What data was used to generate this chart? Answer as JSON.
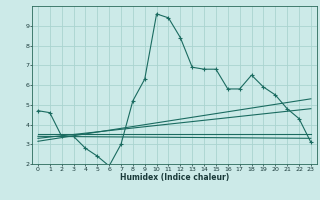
{
  "xlabel": "Humidex (Indice chaleur)",
  "bg_color": "#cceae8",
  "grid_color": "#aad4d0",
  "line_color": "#1a6b60",
  "xlim": [
    -0.5,
    23.5
  ],
  "ylim": [
    2,
    10
  ],
  "xticks": [
    0,
    1,
    2,
    3,
    4,
    5,
    6,
    7,
    8,
    9,
    10,
    11,
    12,
    13,
    14,
    15,
    16,
    17,
    18,
    19,
    20,
    21,
    22,
    23
  ],
  "yticks": [
    2,
    3,
    4,
    5,
    6,
    7,
    8,
    9
  ],
  "main_line_x": [
    0,
    1,
    2,
    3,
    4,
    5,
    6,
    7,
    8,
    9,
    10,
    11,
    12,
    13,
    14,
    15,
    16,
    17,
    18,
    19,
    20,
    21,
    22,
    23
  ],
  "main_line_y": [
    4.7,
    4.6,
    3.4,
    3.4,
    2.8,
    2.4,
    1.9,
    3.0,
    5.2,
    6.3,
    9.6,
    9.4,
    8.4,
    6.9,
    6.8,
    6.8,
    5.8,
    5.8,
    6.5,
    5.9,
    5.5,
    4.8,
    4.3,
    3.1
  ],
  "line2_x": [
    0,
    23
  ],
  "line2_y": [
    3.5,
    3.5
  ],
  "line3_x": [
    0,
    23
  ],
  "line3_y": [
    3.3,
    4.8
  ],
  "line4_x": [
    0,
    23
  ],
  "line4_y": [
    3.15,
    5.3
  ],
  "line5_x": [
    0,
    23
  ],
  "line5_y": [
    3.4,
    3.3
  ]
}
